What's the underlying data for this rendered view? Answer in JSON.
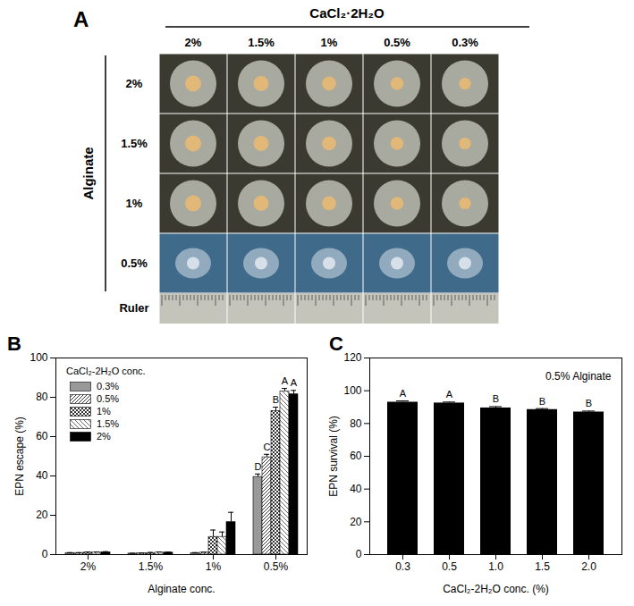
{
  "photo_panel": {
    "panel_label": "A",
    "column_header": "CaCl₂·2H₂O",
    "columns": [
      "2%",
      "1.5%",
      "1%",
      "0.5%",
      "0.3%"
    ],
    "row_header": "Alginate",
    "rows": [
      "2%",
      "1.5%",
      "1%",
      "0.5%"
    ],
    "ruler_label": "Ruler"
  },
  "chart_data": [
    {
      "type": "bar",
      "panel_label": "B",
      "categories": [
        "2%",
        "1.5%",
        "1%",
        "0.5%"
      ],
      "x_label": "Alginate conc.",
      "y_label": "EPN escape (%)",
      "ylim": [
        0,
        100
      ],
      "yticks": [
        0,
        20,
        40,
        60,
        80,
        100
      ],
      "legend": "top-left",
      "legend_title": "CaCl₂-2H₂O conc.",
      "series": [
        {
          "name": "0.3%",
          "color": "#999999",
          "values": [
            0.8,
            0.5,
            0.8,
            39.5
          ],
          "errors": [
            0.2,
            0.2,
            0.2,
            1.5
          ],
          "significance": [
            null,
            null,
            null,
            "D"
          ]
        },
        {
          "name": "0.5%",
          "color": "#ffffff",
          "values": [
            0.8,
            0.6,
            1.0,
            49.5
          ],
          "errors": [
            0.2,
            0.2,
            0.2,
            1.5
          ],
          "significance": [
            null,
            null,
            null,
            "C"
          ]
        },
        {
          "name": "1%",
          "color": "#ffffff",
          "values": [
            1.0,
            0.8,
            9.0,
            73.0
          ],
          "errors": [
            0.3,
            0.3,
            3.5,
            2.0
          ],
          "significance": [
            null,
            null,
            null,
            "B"
          ]
        },
        {
          "name": "1.5%",
          "color": "#ffffff",
          "values": [
            1.0,
            1.0,
            9.0,
            83.0
          ],
          "errors": [
            0.3,
            0.3,
            2.5,
            1.5
          ],
          "significance": [
            null,
            null,
            null,
            "A"
          ]
        },
        {
          "name": "2%",
          "color": "#000000",
          "values": [
            1.2,
            1.0,
            16.5,
            81.5
          ],
          "errors": [
            0.3,
            0.3,
            5.0,
            2.0
          ],
          "significance": [
            null,
            null,
            null,
            "A"
          ]
        }
      ]
    },
    {
      "type": "bar",
      "panel_label": "C",
      "categories": [
        "0.3",
        "0.5",
        "1.0",
        "1.5",
        "2.0"
      ],
      "values": [
        93,
        92.5,
        89.5,
        88.5,
        87
      ],
      "errors": [
        0.8,
        0.6,
        0.8,
        0.6,
        0.6
      ],
      "significance": [
        "A",
        "A",
        "B",
        "B",
        "B"
      ],
      "color": "#000000",
      "x_label": "CaCl₂-2H₂O conc. (%)",
      "y_label": "EPN survival (%)",
      "ylim": [
        0,
        120
      ],
      "yticks": [
        0,
        20,
        40,
        60,
        80,
        100,
        120
      ],
      "annotations": [
        "0.5% Alginate"
      ]
    }
  ]
}
